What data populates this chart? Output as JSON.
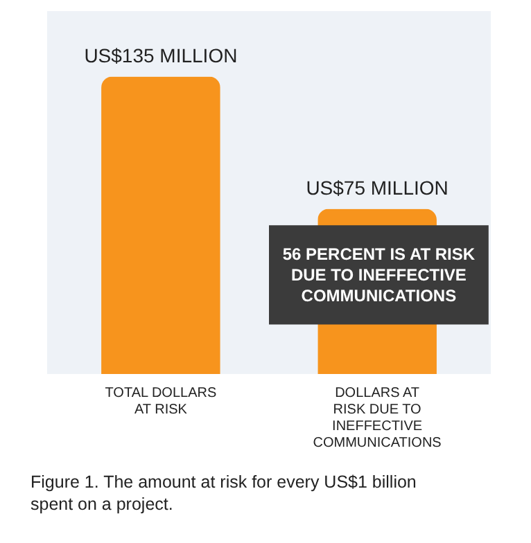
{
  "chart_data": {
    "type": "bar",
    "categories": [
      "TOTAL DOLLARS AT RISK",
      "DOLLARS AT RISK DUE TO INEFFECTIVE COMMUNICATIONS"
    ],
    "values": [
      135,
      75
    ],
    "value_labels": [
      "US$135 MILLION",
      "US$75 MILLION"
    ],
    "color": "#f7941d",
    "annotations": [
      "56 PERCENT IS AT RISK DUE TO INEFFECTIVE COMMUNICATIONS",
      "Figure 1. The amount at risk for every US$1 billion spent on a project."
    ],
    "grid": false
  }
}
